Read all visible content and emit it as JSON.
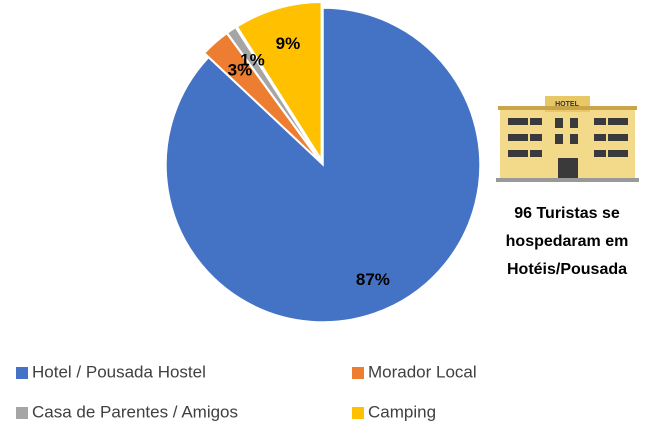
{
  "chart_data": {
    "type": "pie",
    "categories": [
      "Hotel / Pousada Hostel",
      "Morador Local",
      "Casa de Parentes / Amigos",
      "Camping"
    ],
    "values": [
      87,
      3,
      1,
      9
    ],
    "value_labels": [
      "87%",
      "3%",
      "1%",
      "9%"
    ],
    "colors": [
      "#4472c4",
      "#ed7d31",
      "#a5a5a5",
      "#ffc000"
    ],
    "annotation": [
      "96 Turistas se",
      "hospedaram em",
      "Hotéis/Pousada"
    ],
    "legend": "bottom"
  }
}
